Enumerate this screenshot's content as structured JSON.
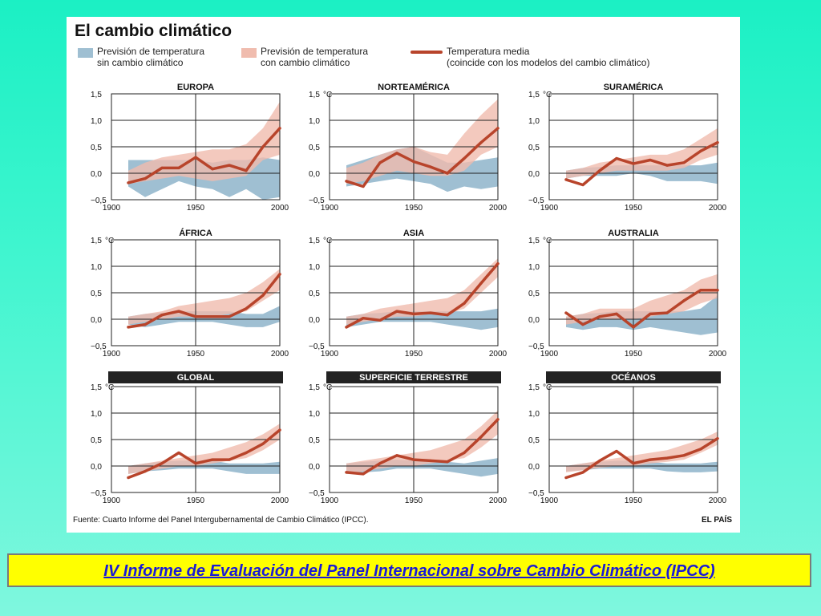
{
  "title": "El cambio climático",
  "legend": {
    "without_change": {
      "line1": "Previsión de temperatura",
      "line2": "sin cambio climático"
    },
    "with_change": {
      "line1": "Previsión de temperatura",
      "line2": "con cambio climático"
    },
    "mean": {
      "line1": "Temperatura media",
      "line2": "(coincide con los modelos del cambio climático)"
    }
  },
  "colors": {
    "blue_band": "#9fbfd2",
    "pink_band": "#f0bcae",
    "mean_line": "#b8442b",
    "caption_bg": "#ffff00",
    "caption_text": "#1a1ad6"
  },
  "source": "Fuente: Cuarto Informe del Panel Intergubernamental de Cambio Climático (IPCC).",
  "brand": "EL PAÍS",
  "caption": "IV Informe de Evaluación del Panel Internacional sobre Cambio Climático (IPCC)",
  "chart_data": [
    {
      "type": "area",
      "title": "EUROPA",
      "title_style": "plain",
      "unit": "",
      "x": [
        1910,
        1920,
        1930,
        1940,
        1950,
        1960,
        1970,
        1980,
        1990,
        2000
      ],
      "series": [
        {
          "name": "Temperatura media",
          "values": [
            -0.18,
            -0.1,
            0.1,
            0.1,
            0.3,
            0.08,
            0.15,
            0.05,
            0.5,
            0.85
          ]
        }
      ],
      "band_no_change": {
        "low": [
          -0.25,
          -0.45,
          -0.3,
          -0.15,
          -0.25,
          -0.3,
          -0.45,
          -0.3,
          -0.5,
          -0.45
        ],
        "high": [
          0.25,
          0.25,
          0.25,
          0.25,
          0.25,
          0.2,
          0.25,
          0.25,
          0.3,
          0.25
        ]
      },
      "band_change": {
        "low": [
          -0.2,
          -0.15,
          -0.1,
          -0.05,
          -0.1,
          -0.15,
          -0.1,
          -0.05,
          0.25,
          0.35
        ],
        "high": [
          0.05,
          0.2,
          0.3,
          0.35,
          0.4,
          0.45,
          0.45,
          0.55,
          0.85,
          1.35
        ]
      },
      "ylim": [
        -0.5,
        1.5
      ],
      "yticks": [
        "1,5",
        "1,0",
        "0,5",
        "0,0",
        "−0,5"
      ],
      "xticks": [
        "1900",
        "1950",
        "2000"
      ]
    },
    {
      "type": "area",
      "title": "NORTEAMÉRICA",
      "title_style": "plain",
      "unit": "°C",
      "x": [
        1910,
        1920,
        1930,
        1940,
        1950,
        1960,
        1970,
        1980,
        1990,
        2000
      ],
      "series": [
        {
          "name": "Temperatura media",
          "values": [
            -0.15,
            -0.25,
            0.2,
            0.38,
            0.22,
            0.12,
            0.0,
            0.28,
            0.58,
            0.85
          ]
        }
      ],
      "band_no_change": {
        "low": [
          -0.25,
          -0.2,
          -0.15,
          -0.1,
          -0.15,
          -0.2,
          -0.35,
          -0.25,
          -0.3,
          -0.25
        ],
        "high": [
          0.15,
          0.25,
          0.35,
          0.45,
          0.5,
          0.35,
          0.2,
          0.2,
          0.25,
          0.3
        ]
      },
      "band_change": {
        "low": [
          -0.2,
          -0.15,
          -0.05,
          0.05,
          0.0,
          -0.05,
          -0.05,
          0.05,
          0.35,
          0.5
        ],
        "high": [
          0.1,
          0.2,
          0.35,
          0.45,
          0.5,
          0.4,
          0.35,
          0.75,
          1.1,
          1.4
        ]
      },
      "ylim": [
        -0.5,
        1.5
      ],
      "yticks": [
        "1,5",
        "1,0",
        "0,5",
        "0,0",
        "−0,5"
      ],
      "xticks": [
        "1900",
        "1950",
        "2000"
      ]
    },
    {
      "type": "area",
      "title": "SURAMÉRICA",
      "title_style": "plain",
      "unit": "°C",
      "x": [
        1910,
        1920,
        1930,
        1940,
        1950,
        1960,
        1970,
        1980,
        1990,
        2000
      ],
      "series": [
        {
          "name": "Temperatura media",
          "values": [
            -0.12,
            -0.22,
            0.05,
            0.28,
            0.18,
            0.25,
            0.15,
            0.2,
            0.42,
            0.58
          ]
        }
      ],
      "band_no_change": {
        "low": [
          -0.1,
          -0.05,
          -0.05,
          -0.05,
          0.0,
          -0.05,
          -0.15,
          -0.15,
          -0.15,
          -0.2
        ],
        "high": [
          0.05,
          0.1,
          0.12,
          0.15,
          0.15,
          0.15,
          0.15,
          0.15,
          0.15,
          0.2
        ]
      },
      "band_change": {
        "low": [
          -0.1,
          -0.05,
          0.0,
          0.05,
          0.05,
          0.05,
          0.05,
          0.1,
          0.25,
          0.35
        ],
        "high": [
          0.05,
          0.1,
          0.2,
          0.25,
          0.3,
          0.35,
          0.35,
          0.45,
          0.65,
          0.85
        ]
      },
      "ylim": [
        -0.5,
        1.5
      ],
      "yticks": [
        "1,5",
        "1,0",
        "0,5",
        "0,0",
        "−0,5"
      ],
      "xticks": [
        "1900",
        "1950",
        "2000"
      ]
    },
    {
      "type": "area",
      "title": "ÁFRICA",
      "title_style": "plain",
      "unit": "°C",
      "x": [
        1910,
        1920,
        1930,
        1940,
        1950,
        1960,
        1970,
        1980,
        1990,
        2000
      ],
      "series": [
        {
          "name": "Temperatura media",
          "values": [
            -0.15,
            -0.1,
            0.08,
            0.15,
            0.05,
            0.05,
            0.05,
            0.2,
            0.45,
            0.85
          ]
        }
      ],
      "band_no_change": {
        "low": [
          -0.1,
          -0.15,
          -0.1,
          -0.05,
          -0.05,
          -0.05,
          -0.1,
          -0.15,
          -0.15,
          -0.05
        ],
        "high": [
          0.05,
          0.1,
          0.12,
          0.15,
          0.15,
          0.15,
          0.15,
          0.1,
          0.1,
          0.25
        ]
      },
      "band_change": {
        "low": [
          -0.1,
          -0.05,
          0.0,
          0.05,
          0.05,
          0.05,
          0.1,
          0.15,
          0.35,
          0.55
        ],
        "high": [
          0.05,
          0.1,
          0.15,
          0.25,
          0.3,
          0.35,
          0.4,
          0.5,
          0.7,
          0.95
        ]
      },
      "ylim": [
        -0.5,
        1.5
      ],
      "yticks": [
        "1,5",
        "1,0",
        "0,5",
        "0,0",
        "−0,5"
      ],
      "xticks": [
        "1900",
        "1950",
        "2000"
      ]
    },
    {
      "type": "area",
      "title": "ASIA",
      "title_style": "plain",
      "unit": "°C",
      "x": [
        1910,
        1920,
        1930,
        1940,
        1950,
        1960,
        1970,
        1980,
        1990,
        2000
      ],
      "series": [
        {
          "name": "Temperatura media",
          "values": [
            -0.15,
            0.02,
            -0.02,
            0.15,
            0.1,
            0.12,
            0.08,
            0.3,
            0.68,
            1.05
          ]
        }
      ],
      "band_no_change": {
        "low": [
          -0.15,
          -0.1,
          -0.05,
          -0.05,
          -0.05,
          -0.05,
          -0.1,
          -0.15,
          -0.2,
          -0.15
        ],
        "high": [
          0.05,
          0.1,
          0.12,
          0.15,
          0.15,
          0.15,
          0.15,
          0.15,
          0.15,
          0.2
        ]
      },
      "band_change": {
        "low": [
          -0.1,
          -0.05,
          0.0,
          0.05,
          0.05,
          0.1,
          0.1,
          0.2,
          0.5,
          0.8
        ],
        "high": [
          0.05,
          0.1,
          0.2,
          0.25,
          0.3,
          0.35,
          0.4,
          0.55,
          0.85,
          1.15
        ]
      },
      "ylim": [
        -0.5,
        1.5
      ],
      "yticks": [
        "1,5",
        "1,0",
        "0,5",
        "0,0",
        "−0,5"
      ],
      "xticks": [
        "1900",
        "1950",
        "2000"
      ]
    },
    {
      "type": "area",
      "title": "AUSTRALIA",
      "title_style": "plain",
      "unit": "°C",
      "x": [
        1910,
        1920,
        1930,
        1940,
        1950,
        1960,
        1970,
        1980,
        1990,
        2000
      ],
      "series": [
        {
          "name": "Temperatura media",
          "values": [
            0.12,
            -0.1,
            0.05,
            0.1,
            -0.15,
            0.1,
            0.12,
            0.35,
            0.55,
            0.55
          ]
        }
      ],
      "band_no_change": {
        "low": [
          -0.15,
          -0.2,
          -0.15,
          -0.15,
          -0.2,
          -0.15,
          -0.2,
          -0.25,
          -0.3,
          -0.25
        ],
        "high": [
          0.05,
          0.1,
          0.12,
          0.15,
          0.15,
          0.15,
          0.15,
          0.15,
          0.2,
          0.45
        ]
      },
      "band_change": {
        "low": [
          -0.1,
          -0.05,
          0.0,
          0.0,
          0.0,
          0.05,
          0.1,
          0.15,
          0.3,
          0.4
        ],
        "high": [
          0.05,
          0.1,
          0.2,
          0.2,
          0.2,
          0.35,
          0.45,
          0.55,
          0.75,
          0.85
        ]
      },
      "ylim": [
        -0.5,
        1.5
      ],
      "yticks": [
        "1,5",
        "1,0",
        "0,5",
        "0,0",
        "−0,5"
      ],
      "xticks": [
        "1900",
        "1950",
        "2000"
      ]
    },
    {
      "type": "area",
      "title": "GLOBAL",
      "title_style": "banner",
      "unit": "°C",
      "x": [
        1910,
        1920,
        1930,
        1940,
        1950,
        1960,
        1970,
        1980,
        1990,
        2000
      ],
      "series": [
        {
          "name": "Temperatura media",
          "values": [
            -0.22,
            -0.1,
            0.05,
            0.25,
            0.05,
            0.12,
            0.12,
            0.25,
            0.42,
            0.68
          ]
        }
      ],
      "band_no_change": {
        "low": [
          -0.15,
          -0.1,
          -0.08,
          -0.05,
          -0.05,
          -0.05,
          -0.1,
          -0.15,
          -0.15,
          -0.15
        ],
        "high": [
          0.0,
          0.05,
          0.08,
          0.1,
          0.1,
          0.1,
          0.05,
          0.05,
          0.05,
          0.08
        ]
      },
      "band_change": {
        "low": [
          -0.15,
          -0.1,
          -0.05,
          0.0,
          0.0,
          0.05,
          0.1,
          0.15,
          0.3,
          0.5
        ],
        "high": [
          0.0,
          0.05,
          0.1,
          0.15,
          0.2,
          0.25,
          0.35,
          0.45,
          0.6,
          0.8
        ]
      },
      "ylim": [
        -0.5,
        1.5
      ],
      "yticks": [
        "1,5",
        "1,0",
        "0,5",
        "0,0",
        "−0,5"
      ],
      "xticks": [
        "1900",
        "1950",
        "2000"
      ]
    },
    {
      "type": "area",
      "title": "SUPERFICIE TERRESTRE",
      "title_style": "banner",
      "unit": "°C",
      "x": [
        1910,
        1920,
        1930,
        1940,
        1950,
        1960,
        1970,
        1980,
        1990,
        2000
      ],
      "series": [
        {
          "name": "Temperatura media",
          "values": [
            -0.12,
            -0.15,
            0.05,
            0.2,
            0.12,
            0.1,
            0.08,
            0.25,
            0.55,
            0.88
          ]
        }
      ],
      "band_no_change": {
        "low": [
          -0.15,
          -0.12,
          -0.1,
          -0.05,
          -0.05,
          -0.05,
          -0.1,
          -0.15,
          -0.2,
          -0.15
        ],
        "high": [
          0.05,
          0.08,
          0.1,
          0.12,
          0.1,
          0.1,
          0.08,
          0.05,
          0.1,
          0.15
        ]
      },
      "band_change": {
        "low": [
          -0.15,
          -0.1,
          -0.05,
          0.0,
          0.0,
          0.05,
          0.1,
          0.15,
          0.35,
          0.6
        ],
        "high": [
          0.05,
          0.1,
          0.15,
          0.2,
          0.25,
          0.3,
          0.4,
          0.5,
          0.75,
          1.05
        ]
      },
      "ylim": [
        -0.5,
        1.5
      ],
      "yticks": [
        "1,5",
        "1,0",
        "0,5",
        "0,0",
        "−0,5"
      ],
      "xticks": [
        "1900",
        "1950",
        "2000"
      ]
    },
    {
      "type": "area",
      "title": "OCÉANOS",
      "title_style": "banner",
      "unit": "°C",
      "x": [
        1910,
        1920,
        1930,
        1940,
        1950,
        1960,
        1970,
        1980,
        1990,
        2000
      ],
      "series": [
        {
          "name": "Temperatura media",
          "values": [
            -0.22,
            -0.12,
            0.1,
            0.28,
            0.05,
            0.12,
            0.15,
            0.2,
            0.32,
            0.52
          ]
        }
      ],
      "band_no_change": {
        "low": [
          -0.1,
          -0.08,
          -0.05,
          -0.05,
          -0.05,
          -0.05,
          -0.1,
          -0.12,
          -0.12,
          -0.1
        ],
        "high": [
          0.0,
          0.05,
          0.08,
          0.1,
          0.1,
          0.08,
          0.05,
          0.05,
          0.05,
          0.08
        ]
      },
      "band_change": {
        "low": [
          -0.12,
          -0.08,
          -0.03,
          0.0,
          0.0,
          0.05,
          0.08,
          0.12,
          0.25,
          0.4
        ],
        "high": [
          0.0,
          0.05,
          0.1,
          0.15,
          0.2,
          0.25,
          0.3,
          0.4,
          0.5,
          0.65
        ]
      },
      "ylim": [
        -0.5,
        1.5
      ],
      "yticks": [
        "1,5",
        "1,0",
        "0,5",
        "0,0",
        "−0,5"
      ],
      "xticks": [
        "1900",
        "1950",
        "2000"
      ]
    }
  ]
}
